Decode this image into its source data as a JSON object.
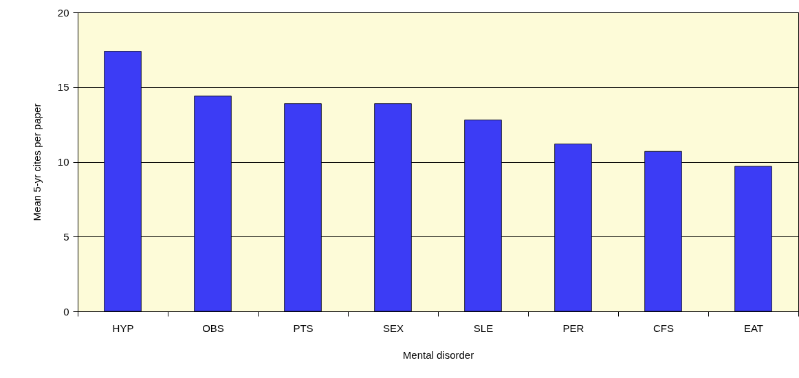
{
  "chart_data": {
    "type": "bar",
    "xlabel": "Mental disorder",
    "ylabel": "Mean 5-yr cites per paper",
    "categories": [
      "HYP",
      "OBS",
      "PTS",
      "SEX",
      "SLE",
      "PER",
      "CFS",
      "EAT"
    ],
    "values": [
      17.4,
      14.4,
      13.9,
      13.9,
      12.8,
      11.2,
      10.7,
      9.7
    ],
    "color": "#3c3cf5",
    "ylim": [
      0,
      20
    ],
    "yticks": [
      0,
      5,
      10,
      15,
      20
    ],
    "grid": "y"
  }
}
